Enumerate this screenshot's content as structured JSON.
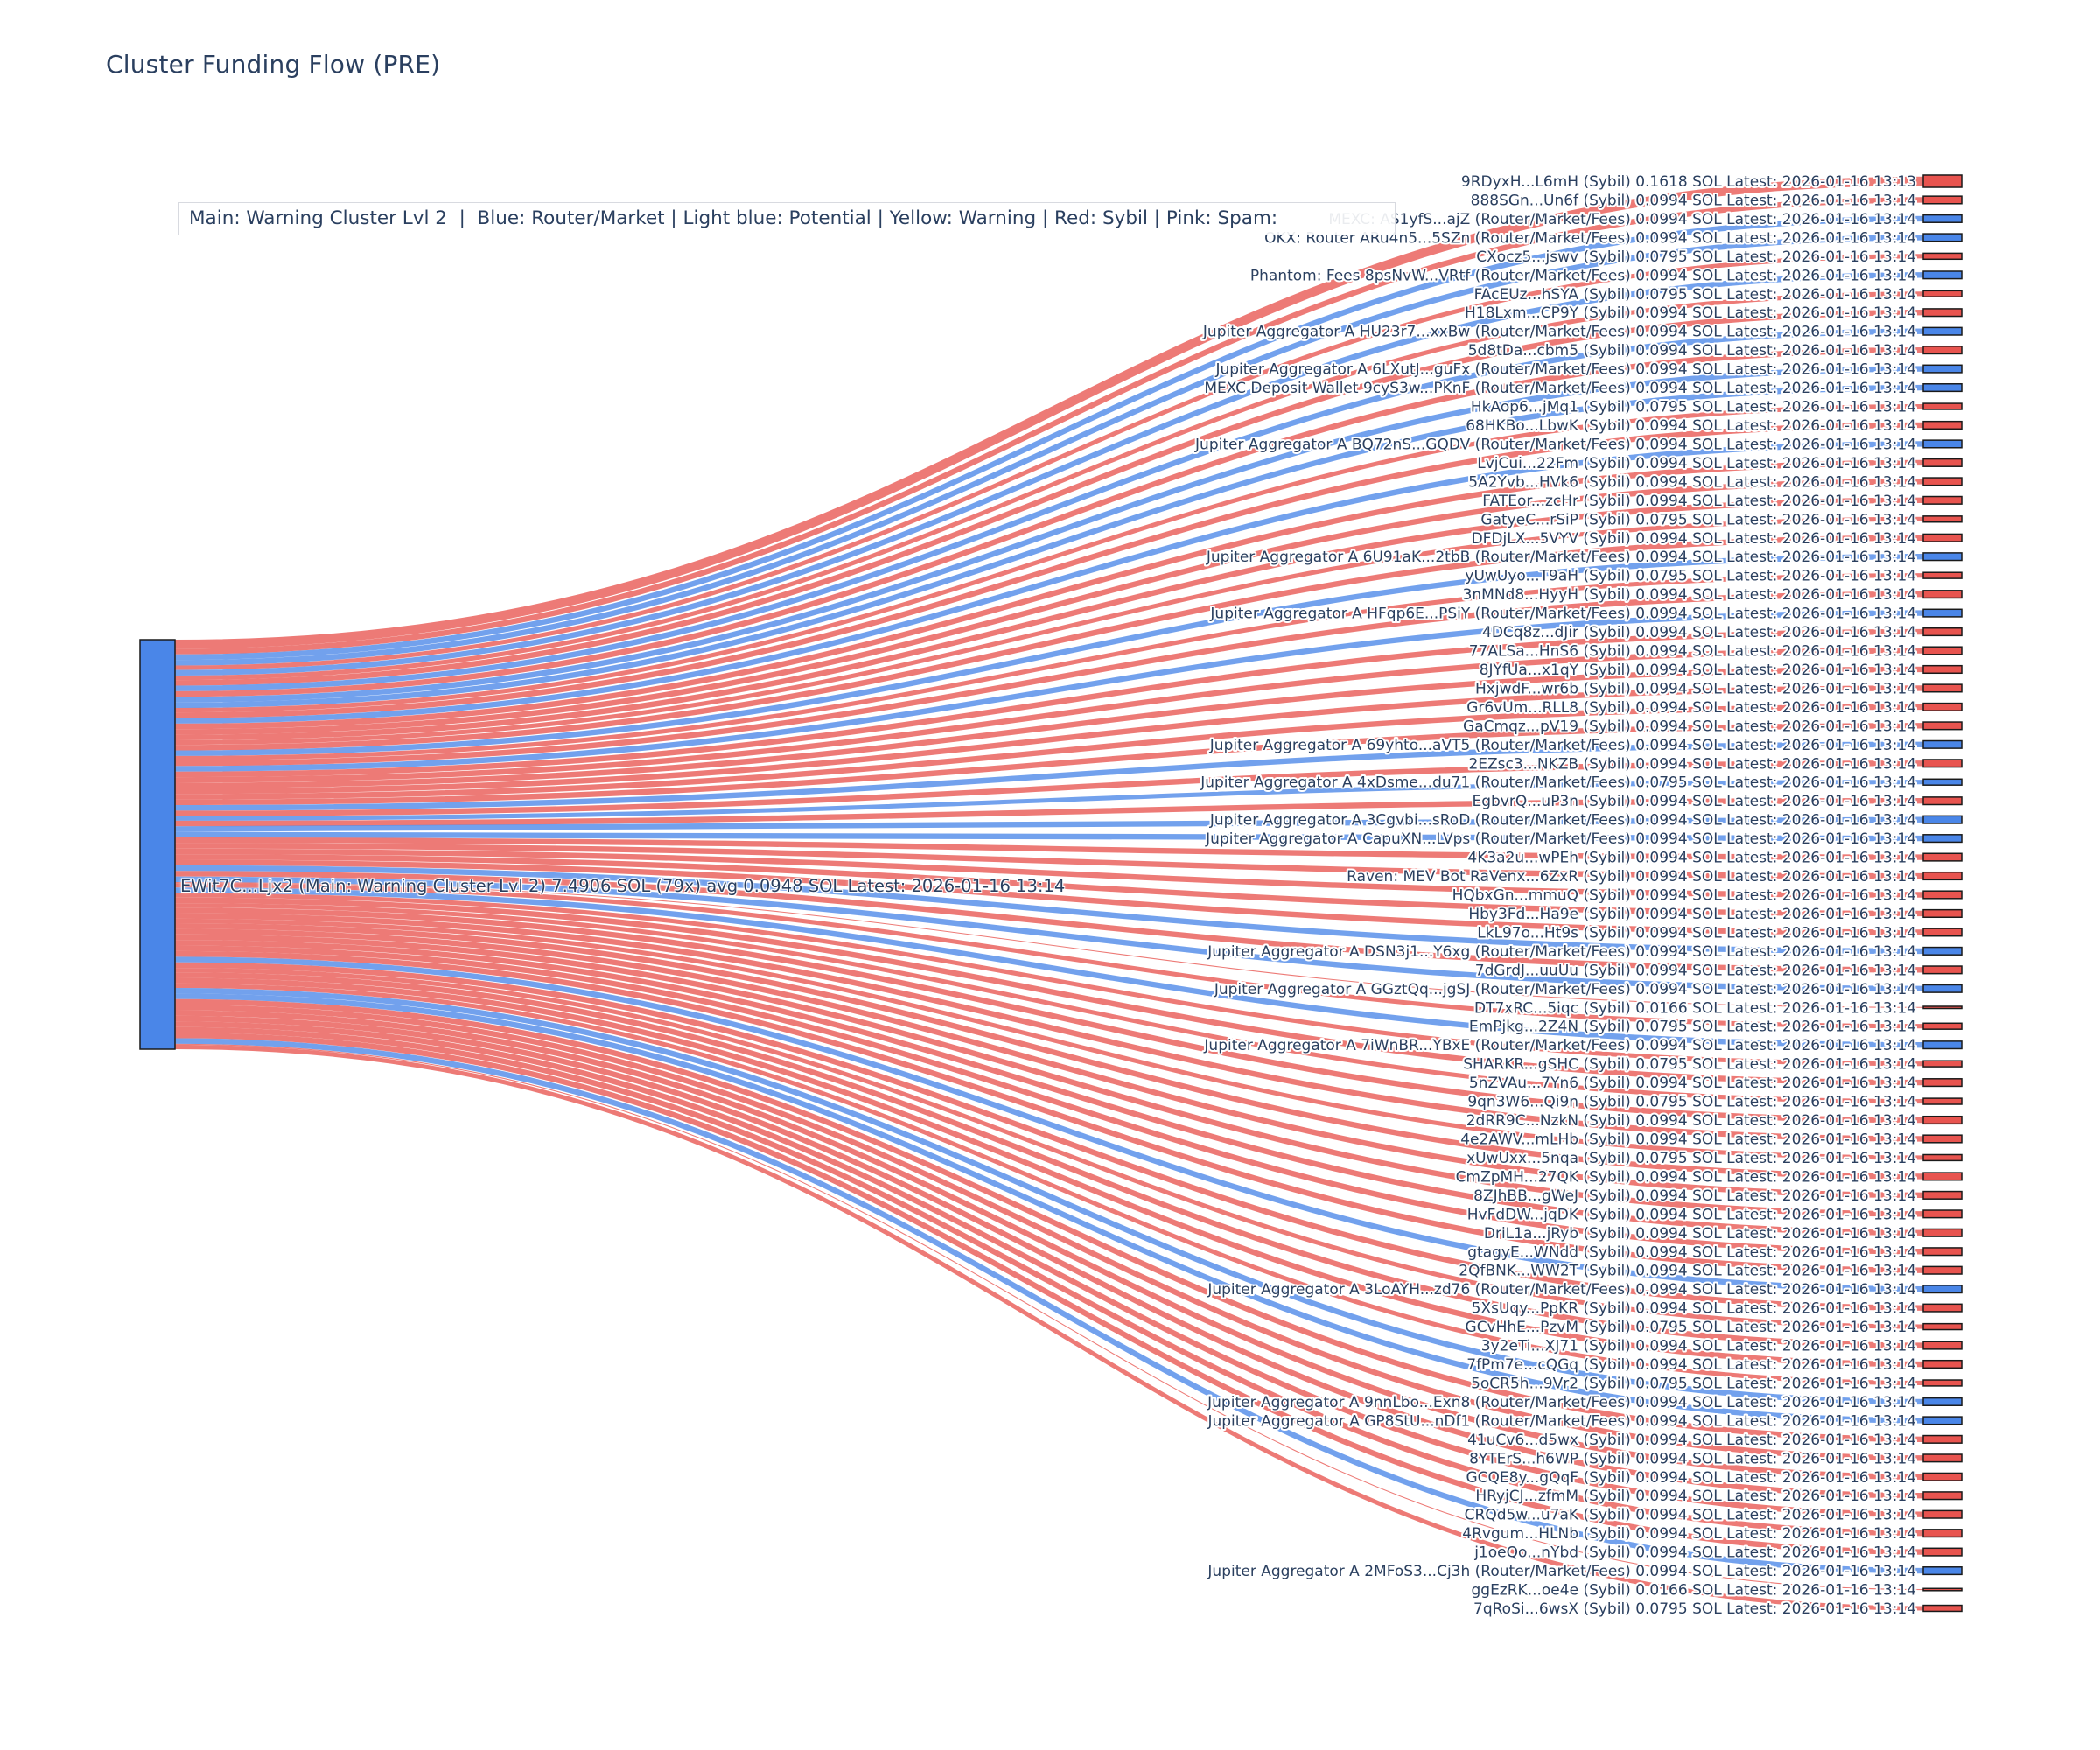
{
  "title": "Cluster Funding Flow (PRE)",
  "legend": {
    "text": "Main: Warning Cluster Lvl 2  |  Blue: Router/Market | Light blue: Potential | Yellow: Warning | Red: Sybil | Pink: Spam:"
  },
  "colors": {
    "sybil": "#E8544F",
    "router": "#4A86E8",
    "node_border": "#1A1A1A",
    "text": "#2A3F5F",
    "title": "#2A3F5F"
  },
  "chart_data": {
    "type": "sankey",
    "unit": "SOL",
    "source_node": {
      "label": "EWit7C...Ljx2 (Main: Warning Cluster Lvl 2) 7.4906 SOL (79x) avg 0.0948 SOL Latest: 2026-01-16 13:14",
      "name": "EWit7C...Ljx2",
      "category": "Main: Warning Cluster Lvl 2",
      "total_sol": 7.4906,
      "tx_count": "79x",
      "avg_sol": 0.0948,
      "latest": "2026-01-16 13:14",
      "color_key": "router"
    },
    "links": [
      {
        "name": "9RDyxH...L6mH",
        "type": "Sybil",
        "value": 0.1618,
        "time": "2026-01-16 13:13",
        "color_key": "sybil"
      },
      {
        "name": "888SGn...Un6f",
        "type": "Sybil",
        "value": 0.0994,
        "time": "2026-01-16 13:14",
        "color_key": "sybil"
      },
      {
        "name": "MEXC: AS1yfS...ajZ",
        "type": "Router/Market/Fees",
        "value": 0.0994,
        "time": "2026-01-16 13:14",
        "color_key": "router"
      },
      {
        "name": "OKX: Router ARu4n5...5SZn",
        "type": "Router/Market/Fees",
        "value": 0.0994,
        "time": "2026-01-16 13:14",
        "color_key": "router"
      },
      {
        "name": "CXocz5...jswv",
        "type": "Sybil",
        "value": 0.0795,
        "time": "2026-01-16 13:14",
        "color_key": "sybil"
      },
      {
        "name": "Phantom: Fees 8psNvW...VRtf",
        "type": "Router/Market/Fees",
        "value": 0.0994,
        "time": "2026-01-16 13:14",
        "color_key": "router"
      },
      {
        "name": "FAcEUz...hSYA",
        "type": "Sybil",
        "value": 0.0795,
        "time": "2026-01-16 13:14",
        "color_key": "sybil"
      },
      {
        "name": "H18Lxm...CP9Y",
        "type": "Sybil",
        "value": 0.0994,
        "time": "2026-01-16 13:14",
        "color_key": "sybil"
      },
      {
        "name": "Jupiter Aggregator A HU23r7...xxBw",
        "type": "Router/Market/Fees",
        "value": 0.0994,
        "time": "2026-01-16 13:14",
        "color_key": "router"
      },
      {
        "name": "5d8tDa...cbm5",
        "type": "Sybil",
        "value": 0.0994,
        "time": "2026-01-16 13:14",
        "color_key": "sybil"
      },
      {
        "name": "Jupiter Aggregator A 6LXutJ...guFx",
        "type": "Router/Market/Fees",
        "value": 0.0994,
        "time": "2026-01-16 13:14",
        "color_key": "router"
      },
      {
        "name": "MEXC Deposit Wallet 9cyS3w...PKnF",
        "type": "Router/Market/Fees",
        "value": 0.0994,
        "time": "2026-01-16 13:14",
        "color_key": "router"
      },
      {
        "name": "HkAop6...jMq1",
        "type": "Sybil",
        "value": 0.0795,
        "time": "2026-01-16 13:14",
        "color_key": "sybil"
      },
      {
        "name": "68HKBo...LbwK",
        "type": "Sybil",
        "value": 0.0994,
        "time": "2026-01-16 13:14",
        "color_key": "sybil"
      },
      {
        "name": "Jupiter Aggregator A BQ72nS...GQDV",
        "type": "Router/Market/Fees",
        "value": 0.0994,
        "time": "2026-01-16 13:14",
        "color_key": "router"
      },
      {
        "name": "LvjCui...22Fm",
        "type": "Sybil",
        "value": 0.0994,
        "time": "2026-01-16 13:14",
        "color_key": "sybil"
      },
      {
        "name": "5A2Yvb...HVk6",
        "type": "Sybil",
        "value": 0.0994,
        "time": "2026-01-16 13:14",
        "color_key": "sybil"
      },
      {
        "name": "FATEor...zcHr",
        "type": "Sybil",
        "value": 0.0994,
        "time": "2026-01-16 13:14",
        "color_key": "sybil"
      },
      {
        "name": "GatyeC...rSiP",
        "type": "Sybil",
        "value": 0.0795,
        "time": "2026-01-16 13:14",
        "color_key": "sybil"
      },
      {
        "name": "DFDjLX...5VYV",
        "type": "Sybil",
        "value": 0.0994,
        "time": "2026-01-16 13:14",
        "color_key": "sybil"
      },
      {
        "name": "Jupiter Aggregator A 6U91aK...2tbB",
        "type": "Router/Market/Fees",
        "value": 0.0994,
        "time": "2026-01-16 13:14",
        "color_key": "router"
      },
      {
        "name": "yUwUyo...T9aH",
        "type": "Sybil",
        "value": 0.0795,
        "time": "2026-01-16 13:14",
        "color_key": "sybil"
      },
      {
        "name": "3nMNd8...HyyH",
        "type": "Sybil",
        "value": 0.0994,
        "time": "2026-01-16 13:14",
        "color_key": "sybil"
      },
      {
        "name": "Jupiter Aggregator A HFqp6E...PSiY",
        "type": "Router/Market/Fees",
        "value": 0.0994,
        "time": "2026-01-16 13:14",
        "color_key": "router"
      },
      {
        "name": "4DCq8z...dJir",
        "type": "Sybil",
        "value": 0.0994,
        "time": "2026-01-16 13:14",
        "color_key": "sybil"
      },
      {
        "name": "77ALSa...HnS6",
        "type": "Sybil",
        "value": 0.0994,
        "time": "2026-01-16 13:14",
        "color_key": "sybil"
      },
      {
        "name": "8JYfUa...x1qY",
        "type": "Sybil",
        "value": 0.0994,
        "time": "2026-01-16 13:14",
        "color_key": "sybil"
      },
      {
        "name": "HxjwdF...wr6b",
        "type": "Sybil",
        "value": 0.0994,
        "time": "2026-01-16 13:14",
        "color_key": "sybil"
      },
      {
        "name": "Gr6vUm...RLL8",
        "type": "Sybil",
        "value": 0.0994,
        "time": "2026-01-16 13:14",
        "color_key": "sybil"
      },
      {
        "name": "GaCmqz...pV19",
        "type": "Sybil",
        "value": 0.0994,
        "time": "2026-01-16 13:14",
        "color_key": "sybil"
      },
      {
        "name": "Jupiter Aggregator A 69yhto...aVT5",
        "type": "Router/Market/Fees",
        "value": 0.0994,
        "time": "2026-01-16 13:14",
        "color_key": "router"
      },
      {
        "name": "2EZsc3...NKZB",
        "type": "Sybil",
        "value": 0.0994,
        "time": "2026-01-16 13:14",
        "color_key": "sybil"
      },
      {
        "name": "Jupiter Aggregator A 4xDsme...du71",
        "type": "Router/Market/Fees",
        "value": 0.0795,
        "time": "2026-01-16 13:14",
        "color_key": "router"
      },
      {
        "name": "EgbvrQ...uP3n",
        "type": "Sybil",
        "value": 0.0994,
        "time": "2026-01-16 13:14",
        "color_key": "sybil"
      },
      {
        "name": "Jupiter Aggregator A 3Cgvbi...sRoD",
        "type": "Router/Market/Fees",
        "value": 0.0994,
        "time": "2026-01-16 13:14",
        "color_key": "router"
      },
      {
        "name": "Jupiter Aggregator A CapuXN...LVps",
        "type": "Router/Market/Fees",
        "value": 0.0994,
        "time": "2026-01-16 13:14",
        "color_key": "router"
      },
      {
        "name": "4K3a2u...wPEh",
        "type": "Sybil",
        "value": 0.0994,
        "time": "2026-01-16 13:14",
        "color_key": "sybil"
      },
      {
        "name": "Raven: MEV Bot RaVenx...6ZxR",
        "type": "Sybil",
        "value": 0.0994,
        "time": "2026-01-16 13:14",
        "color_key": "sybil"
      },
      {
        "name": "HQbxGn...mmuQ",
        "type": "Sybil",
        "value": 0.0994,
        "time": "2026-01-16 13:14",
        "color_key": "sybil"
      },
      {
        "name": "Hby3Fd...Ha9e",
        "type": "Sybil",
        "value": 0.0994,
        "time": "2026-01-16 13:14",
        "color_key": "sybil"
      },
      {
        "name": "LkL97o...Ht9s",
        "type": "Sybil",
        "value": 0.0994,
        "time": "2026-01-16 13:14",
        "color_key": "sybil"
      },
      {
        "name": "Jupiter Aggregator A DSN3j1...Y6xg",
        "type": "Router/Market/Fees",
        "value": 0.0994,
        "time": "2026-01-16 13:14",
        "color_key": "router"
      },
      {
        "name": "7dGrdJ...uuUu",
        "type": "Sybil",
        "value": 0.0994,
        "time": "2026-01-16 13:14",
        "color_key": "sybil"
      },
      {
        "name": "Jupiter Aggregator A GGztQq...jgSJ",
        "type": "Router/Market/Fees",
        "value": 0.0994,
        "time": "2026-01-16 13:14",
        "color_key": "router"
      },
      {
        "name": "DT7xRC...5iqc",
        "type": "Sybil",
        "value": 0.0166,
        "time": "2026-01-16 13:14",
        "color_key": "sybil"
      },
      {
        "name": "EmPjkg...2Z4N",
        "type": "Sybil",
        "value": 0.0795,
        "time": "2026-01-16 13:14",
        "color_key": "sybil"
      },
      {
        "name": "Jupiter Aggregator A 7iWnBR...YBxE",
        "type": "Router/Market/Fees",
        "value": 0.0994,
        "time": "2026-01-16 13:14",
        "color_key": "router"
      },
      {
        "name": "SHARKR...gSHC",
        "type": "Sybil",
        "value": 0.0795,
        "time": "2026-01-16 13:14",
        "color_key": "sybil"
      },
      {
        "name": "5nZVAu...7Yn6",
        "type": "Sybil",
        "value": 0.0994,
        "time": "2026-01-16 13:14",
        "color_key": "sybil"
      },
      {
        "name": "9qn3W6...Qi9n",
        "type": "Sybil",
        "value": 0.0795,
        "time": "2026-01-16 13:14",
        "color_key": "sybil"
      },
      {
        "name": "2dRR9C...NzkN",
        "type": "Sybil",
        "value": 0.0994,
        "time": "2026-01-16 13:14",
        "color_key": "sybil"
      },
      {
        "name": "4e2AWV...mLHb",
        "type": "Sybil",
        "value": 0.0994,
        "time": "2026-01-16 13:14",
        "color_key": "sybil"
      },
      {
        "name": "xUwUxx...5nqa",
        "type": "Sybil",
        "value": 0.0795,
        "time": "2026-01-16 13:14",
        "color_key": "sybil"
      },
      {
        "name": "CmZpMH...27QK",
        "type": "Sybil",
        "value": 0.0994,
        "time": "2026-01-16 13:14",
        "color_key": "sybil"
      },
      {
        "name": "8ZJhBB...gWeJ",
        "type": "Sybil",
        "value": 0.0994,
        "time": "2026-01-16 13:14",
        "color_key": "sybil"
      },
      {
        "name": "HvFdDW...jqDK",
        "type": "Sybil",
        "value": 0.0994,
        "time": "2026-01-16 13:14",
        "color_key": "sybil"
      },
      {
        "name": "DriL1a...jRyb",
        "type": "Sybil",
        "value": 0.0994,
        "time": "2026-01-16 13:14",
        "color_key": "sybil"
      },
      {
        "name": "gtagyE...WNdd",
        "type": "Sybil",
        "value": 0.0994,
        "time": "2026-01-16 13:14",
        "color_key": "sybil"
      },
      {
        "name": "2QfBNK...WW2T",
        "type": "Sybil",
        "value": 0.0994,
        "time": "2026-01-16 13:14",
        "color_key": "sybil"
      },
      {
        "name": "Jupiter Aggregator A 3LoAYH...zd76",
        "type": "Router/Market/Fees",
        "value": 0.0994,
        "time": "2026-01-16 13:14",
        "color_key": "router"
      },
      {
        "name": "5XsUqy...PpKR",
        "type": "Sybil",
        "value": 0.0994,
        "time": "2026-01-16 13:14",
        "color_key": "sybil"
      },
      {
        "name": "GCvHhE...PzvM",
        "type": "Sybil",
        "value": 0.0795,
        "time": "2026-01-16 13:14",
        "color_key": "sybil"
      },
      {
        "name": "3y2eTi...XJ71",
        "type": "Sybil",
        "value": 0.0994,
        "time": "2026-01-16 13:14",
        "color_key": "sybil"
      },
      {
        "name": "7fPm7e...cQGq",
        "type": "Sybil",
        "value": 0.0994,
        "time": "2026-01-16 13:14",
        "color_key": "sybil"
      },
      {
        "name": "5oCR5h...9Vr2",
        "type": "Sybil",
        "value": 0.0795,
        "time": "2026-01-16 13:14",
        "color_key": "sybil"
      },
      {
        "name": "Jupiter Aggregator A 9nnLbo...Exn8",
        "type": "Router/Market/Fees",
        "value": 0.0994,
        "time": "2026-01-16 13:14",
        "color_key": "router"
      },
      {
        "name": "Jupiter Aggregator A GP8StU...nDf1",
        "type": "Router/Market/Fees",
        "value": 0.0994,
        "time": "2026-01-16 13:14",
        "color_key": "router"
      },
      {
        "name": "41uCv6...d5wx",
        "type": "Sybil",
        "value": 0.0994,
        "time": "2026-01-16 13:14",
        "color_key": "sybil"
      },
      {
        "name": "8YTErS...h6WP",
        "type": "Sybil",
        "value": 0.0994,
        "time": "2026-01-16 13:14",
        "color_key": "sybil"
      },
      {
        "name": "GCQE8y...gQqF",
        "type": "Sybil",
        "value": 0.0994,
        "time": "2026-01-16 13:14",
        "color_key": "sybil"
      },
      {
        "name": "HRyjCJ...zfmM",
        "type": "Sybil",
        "value": 0.0994,
        "time": "2026-01-16 13:14",
        "color_key": "sybil"
      },
      {
        "name": "CRQd5w...u7aK",
        "type": "Sybil",
        "value": 0.0994,
        "time": "2026-01-16 13:14",
        "color_key": "sybil"
      },
      {
        "name": "4Rvgum...HLNb",
        "type": "Sybil",
        "value": 0.0994,
        "time": "2026-01-16 13:14",
        "color_key": "sybil"
      },
      {
        "name": "j1oeQo...nYbd",
        "type": "Sybil",
        "value": 0.0994,
        "time": "2026-01-16 13:14",
        "color_key": "sybil"
      },
      {
        "name": "Jupiter Aggregator A 2MFoS3...Cj3h",
        "type": "Router/Market/Fees",
        "value": 0.0994,
        "time": "2026-01-16 13:14",
        "color_key": "router"
      },
      {
        "name": "ggEzRK...oe4e",
        "type": "Sybil",
        "value": 0.0166,
        "time": "2026-01-16 13:14",
        "color_key": "sybil"
      },
      {
        "name": "7qRoSi...6wsX",
        "type": "Sybil",
        "value": 0.0795,
        "time": "2026-01-16 13:14",
        "color_key": "sybil"
      }
    ]
  }
}
